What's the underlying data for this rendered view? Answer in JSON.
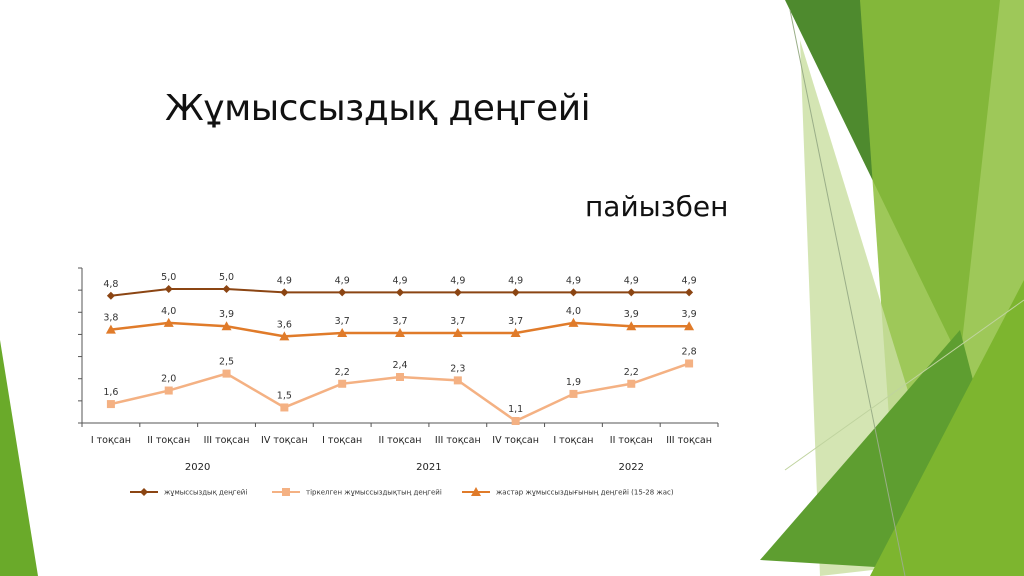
{
  "slide": {
    "title": "Жұмыссыздық деңгейі",
    "subtitle": "пайызбен"
  },
  "chart_data": {
    "type": "line",
    "categories": [
      "I тоқсан",
      "II тоқсан",
      "III тоқсан",
      "IV тоқсан",
      "I тоқсан",
      "II тоқсан",
      "III тоқсан",
      "IV тоқсан",
      "I тоқсан",
      "II тоқсан",
      "III тоқсан"
    ],
    "years": [
      {
        "label": "2020",
        "from": 0,
        "to": 3
      },
      {
        "label": "2021",
        "from": 4,
        "to": 7
      },
      {
        "label": "2022",
        "from": 8,
        "to": 10
      }
    ],
    "series": [
      {
        "name": "жұмыссыздық деңгейі",
        "color": "#8B4513",
        "marker": "diamond",
        "values": [
          4.8,
          5.0,
          5.0,
          4.9,
          4.9,
          4.9,
          4.9,
          4.9,
          4.9,
          4.9,
          4.9
        ],
        "labels": [
          "4,8",
          "5,0",
          "5,0",
          "4,9",
          "4,9",
          "4,9",
          "4,9",
          "4,9",
          "4,9",
          "4,9",
          "4,9"
        ]
      },
      {
        "name": "тіркелген жұмыссыздықтың деңгейі",
        "color": "#F4B183",
        "marker": "square",
        "values": [
          1.6,
          2.0,
          2.5,
          1.5,
          2.2,
          2.4,
          2.3,
          1.1,
          1.9,
          2.2,
          2.8
        ],
        "labels": [
          "1,6",
          "2,0",
          "2,5",
          "1,5",
          "2,2",
          "2,4",
          "2,3",
          "1,1",
          "1,9",
          "2,2",
          "2,8"
        ]
      },
      {
        "name": "жастар жұмыссыздығының деңгейі (15-28 жас)",
        "color": "#E07B2A",
        "marker": "triangle",
        "values": [
          3.8,
          4.0,
          3.9,
          3.6,
          3.7,
          3.7,
          3.7,
          3.7,
          4.0,
          3.9,
          3.9
        ],
        "labels": [
          "3,8",
          "4,0",
          "3,9",
          "3,6",
          "3,7",
          "3,7",
          "3,7",
          "3,7",
          "4,0",
          "3,9",
          "3,9"
        ]
      }
    ],
    "ylim": [
      1.1,
      5.0
    ],
    "grid": false,
    "legend": "bottom"
  }
}
